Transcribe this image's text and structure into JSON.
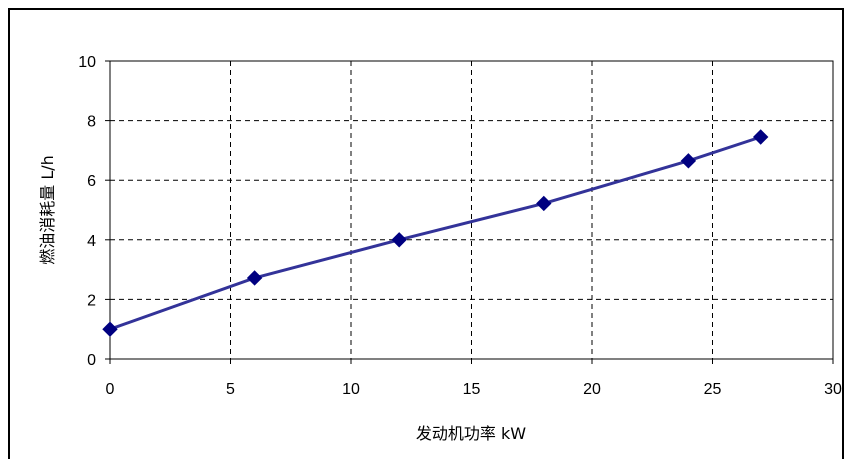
{
  "chart_data": {
    "type": "line",
    "title": "",
    "xlabel": "发动机功率 kW",
    "ylabel": "燃油消耗量 L/h",
    "xlim": [
      0,
      30
    ],
    "ylim": [
      0,
      10
    ],
    "xticks": [
      0,
      5,
      10,
      15,
      20,
      25,
      30
    ],
    "yticks": [
      0,
      2,
      4,
      6,
      8,
      10
    ],
    "grid": true,
    "grid_style": "dashed",
    "legend": "none",
    "series": [
      {
        "color": "#333399",
        "marker_color": "#000080",
        "marker": "diamond",
        "points": [
          {
            "x": 0,
            "y": 1.0
          },
          {
            "x": 6,
            "y": 2.72
          },
          {
            "x": 12,
            "y": 4.0
          },
          {
            "x": 18,
            "y": 5.22
          },
          {
            "x": 24,
            "y": 6.65
          },
          {
            "x": 27,
            "y": 7.45
          }
        ]
      }
    ]
  }
}
